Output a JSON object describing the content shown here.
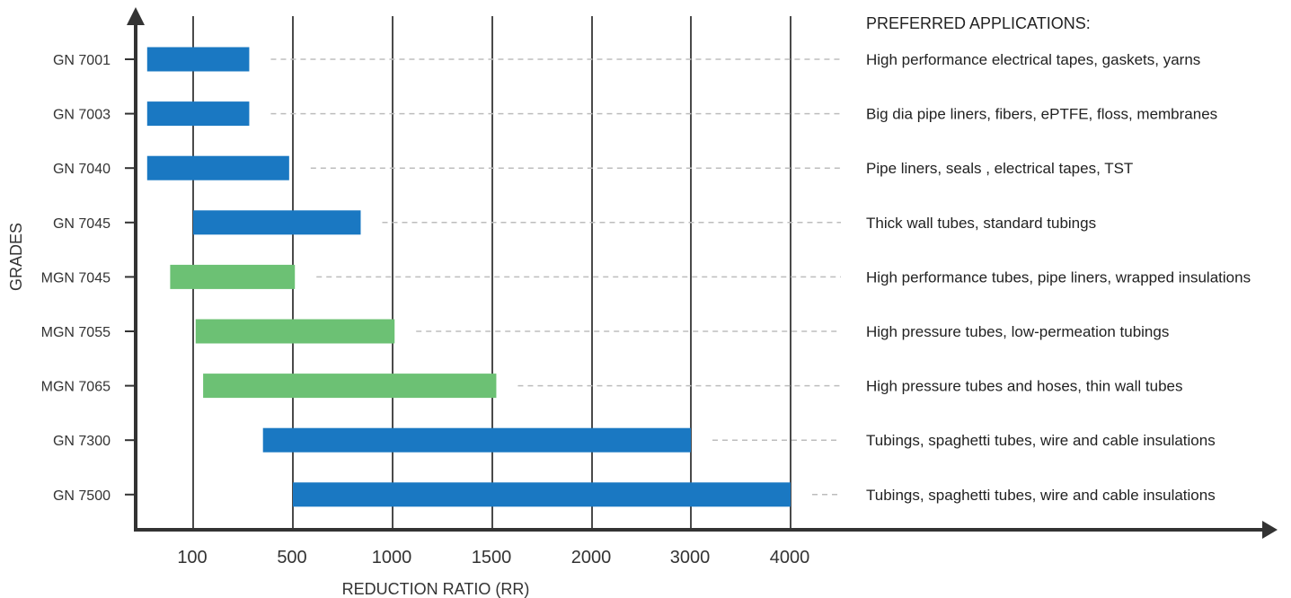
{
  "chart_data": {
    "type": "bar",
    "orientation": "horizontal-range",
    "xlabel": "REDUCTION RATIO (RR)",
    "ylabel": "GRADES",
    "x_ticks": [
      "100",
      "500",
      "1000",
      "1500",
      "2000",
      "3000",
      "4000"
    ],
    "applications_title": "PREFERRED APPLICATIONS:",
    "colors": {
      "GN": "#1a78c2",
      "MGN": "#6cc174"
    },
    "rows": [
      {
        "grade": "GN 7001",
        "series": "GN",
        "start": 20,
        "end": 325,
        "application": "High performance electrical tapes, gaskets, yarns"
      },
      {
        "grade": "GN 7003",
        "series": "GN",
        "start": 20,
        "end": 325,
        "application": "Big dia pipe liners, fibers, ePTFE, floss, membranes"
      },
      {
        "grade": "GN 7040",
        "series": "GN",
        "start": 20,
        "end": 485,
        "application": "Pipe liners, seals , electrical tapes, TST"
      },
      {
        "grade": "GN 7045",
        "series": "GN",
        "start": 100,
        "end": 840,
        "application": "Thick wall tubes, standard tubings"
      },
      {
        "grade": "MGN 7045",
        "series": "MGN",
        "start": 60,
        "end": 510,
        "application": "High performance tubes, pipe liners, wrapped insulations"
      },
      {
        "grade": "MGN 7055",
        "series": "MGN",
        "start": 110,
        "end": 1010,
        "application": "High pressure tubes, low-permeation tubings"
      },
      {
        "grade": "MGN 7065",
        "series": "MGN",
        "start": 140,
        "end": 1520,
        "application": "High pressure tubes and hoses, thin wall tubes"
      },
      {
        "grade": "GN 7300",
        "series": "GN",
        "start": 380,
        "end": 3000,
        "application": "Tubings, spaghetti tubes, wire and cable insulations"
      },
      {
        "grade": "GN 7500",
        "series": "GN",
        "start": 500,
        "end": 4000,
        "application": "Tubings, spaghetti tubes, wire and cable insulations"
      }
    ]
  }
}
